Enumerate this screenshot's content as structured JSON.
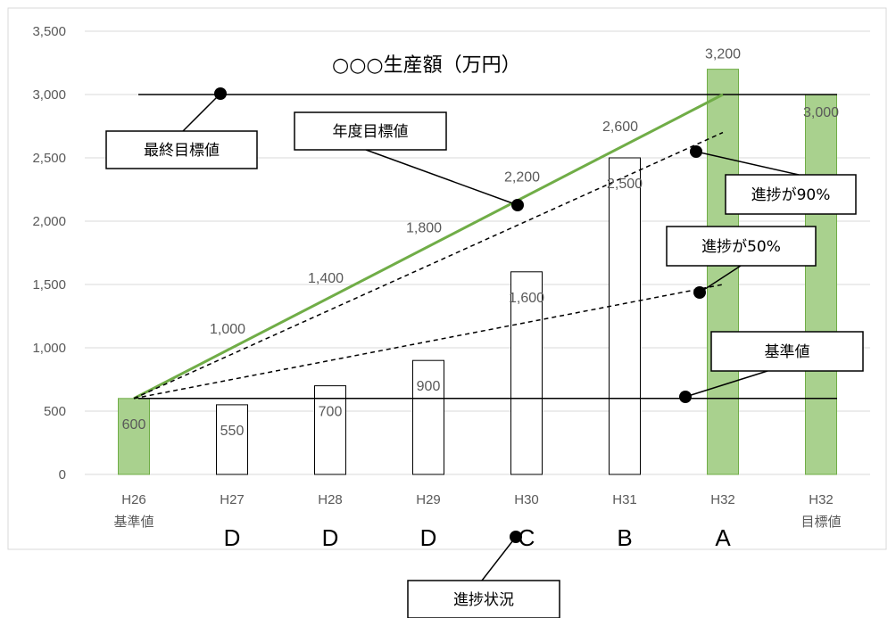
{
  "chart_data": {
    "type": "bar",
    "title": "○○○生産額（万円）",
    "categories": [
      [
        "H26",
        "基準値"
      ],
      [
        "H27",
        ""
      ],
      [
        "H28",
        ""
      ],
      [
        "H29",
        ""
      ],
      [
        "H30",
        ""
      ],
      [
        "H31",
        ""
      ],
      [
        "H32",
        ""
      ],
      [
        "H32",
        "目標値"
      ]
    ],
    "ylim": [
      0,
      3500
    ],
    "yticks": [
      "0",
      "500",
      "1,000",
      "1,500",
      "2,000",
      "2,500",
      "3,000",
      "3,500"
    ],
    "ytick_values": [
      0,
      500,
      1000,
      1500,
      2000,
      2500,
      3000,
      3500
    ],
    "series": [
      {
        "values": [
          600,
          550,
          700,
          900,
          1600,
          2500,
          3200,
          3000
        ],
        "labels": [
          "600",
          "550",
          "700",
          "900",
          "1,600",
          "2,500",
          "3,200",
          "3,000"
        ],
        "highlight": [
          true,
          false,
          false,
          false,
          false,
          false,
          true,
          true
        ]
      }
    ],
    "target_line": {
      "values": [
        600,
        1000,
        1400,
        1800,
        2200,
        2600,
        3000
      ],
      "labels": [
        "",
        "1,000",
        "1,400",
        "1,800",
        "2,200",
        "2,600",
        ""
      ],
      "color": "#70AD47"
    },
    "progress_90_line": {
      "from": 600,
      "to": 2700
    },
    "progress_50_line": {
      "from": 600,
      "to": 1500
    },
    "final_target_value": 3000,
    "base_value": 600,
    "ranks": [
      "",
      "D",
      "D",
      "D",
      "C",
      "B",
      "A",
      ""
    ],
    "callouts": {
      "final_target": "最終目標値",
      "yearly_target": "年度目標値",
      "progress_90": "進捗が90%",
      "progress_50": "進捗が50%",
      "base": "基準値",
      "progress_status": "進捗状況"
    },
    "colors": {
      "highlight_bar": "#A9D18E",
      "highlight_stroke": "#70AD47",
      "bar": "#FFFFFF",
      "bar_stroke": "#000000",
      "grid": "#D9D9D9",
      "axis_text": "#595959"
    },
    "grid": true
  }
}
